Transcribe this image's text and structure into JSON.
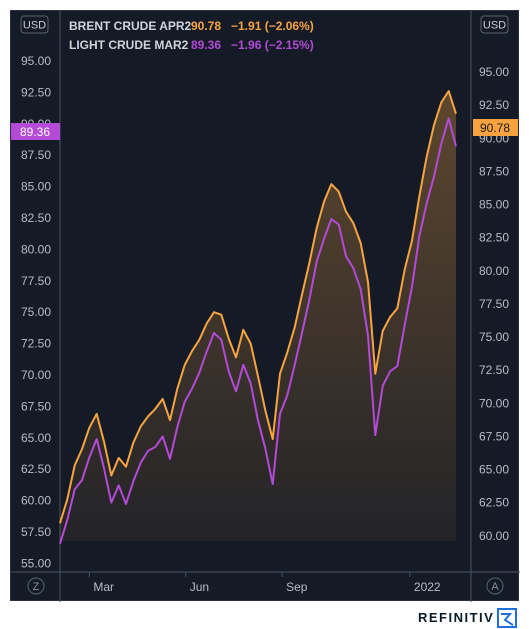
{
  "units": {
    "left": "USD",
    "right": "USD"
  },
  "legend": [
    {
      "name": "BRENT CRUDE APR2",
      "value": "90.78",
      "change": "−1.91 (−2.06%)"
    },
    {
      "name": "LIGHT CRUDE MAR2",
      "value": "89.36",
      "change": "−1.96 (−2.15%)"
    }
  ],
  "price_tags": {
    "light": "89.36",
    "brent": "90.78"
  },
  "controls": {
    "left": "Z",
    "right": "A"
  },
  "brand": "REFINITIV",
  "colors": {
    "brent": "#f7a440",
    "light": "#b44ad8",
    "background": "#151b26"
  },
  "chart_data": {
    "type": "line",
    "x_ticks": [
      "Mar",
      "Jun",
      "Sep",
      "2022"
    ],
    "left_axis": {
      "ticks": [
        "95.00",
        "92.50",
        "90.00",
        "87.50",
        "85.00",
        "82.50",
        "80.00",
        "77.50",
        "75.00",
        "72.50",
        "70.00",
        "67.50",
        "65.00",
        "62.50",
        "60.00",
        "57.50",
        "55.00"
      ],
      "range": [
        55,
        95
      ]
    },
    "right_axis": {
      "ticks": [
        "95.00",
        "92.50",
        "90.00",
        "87.50",
        "85.00",
        "82.50",
        "80.00",
        "77.50",
        "75.00",
        "72.50",
        "70.00",
        "67.50",
        "65.00",
        "62.50",
        "60.00"
      ],
      "range": [
        58,
        96
      ]
    },
    "x": [
      "2021-02-01",
      "2021-02-08",
      "2021-02-15",
      "2021-02-22",
      "2021-03-01",
      "2021-03-08",
      "2021-03-15",
      "2021-03-22",
      "2021-03-29",
      "2021-04-05",
      "2021-04-12",
      "2021-04-19",
      "2021-04-26",
      "2021-05-03",
      "2021-05-10",
      "2021-05-17",
      "2021-05-24",
      "2021-05-31",
      "2021-06-07",
      "2021-06-14",
      "2021-06-21",
      "2021-06-28",
      "2021-07-05",
      "2021-07-12",
      "2021-07-19",
      "2021-07-26",
      "2021-08-02",
      "2021-08-09",
      "2021-08-16",
      "2021-08-23",
      "2021-08-30",
      "2021-09-06",
      "2021-09-13",
      "2021-09-20",
      "2021-09-27",
      "2021-10-04",
      "2021-10-11",
      "2021-10-18",
      "2021-10-25",
      "2021-11-01",
      "2021-11-08",
      "2021-11-15",
      "2021-11-22",
      "2021-11-29",
      "2021-12-06",
      "2021-12-13",
      "2021-12-20",
      "2021-12-27",
      "2022-01-03",
      "2022-01-10",
      "2022-01-17",
      "2022-01-24",
      "2022-01-31",
      "2022-02-07",
      "2022-02-14"
    ],
    "series": [
      {
        "name": "BRENT CRUDE APR2",
        "axis": "left",
        "color": "#f7a440",
        "values": [
          58.2,
          60.1,
          62.8,
          64.1,
          65.8,
          66.9,
          64.7,
          62.0,
          63.4,
          62.7,
          64.6,
          65.9,
          66.7,
          67.3,
          68.1,
          66.4,
          68.9,
          70.8,
          71.9,
          72.8,
          74.1,
          75.0,
          74.8,
          72.9,
          71.4,
          73.6,
          72.5,
          69.9,
          67.2,
          64.9,
          70.1,
          71.8,
          73.8,
          76.4,
          78.9,
          81.7,
          83.8,
          85.2,
          84.6,
          83.0,
          82.1,
          80.5,
          77.4,
          70.1,
          73.5,
          74.6,
          75.3,
          78.4,
          80.7,
          84.2,
          87.4,
          89.9,
          91.7,
          92.6,
          90.8
        ]
      },
      {
        "name": "LIGHT CRUDE MAR2",
        "axis": "right",
        "color": "#b44ad8",
        "values": [
          59.4,
          61.2,
          63.5,
          64.2,
          65.9,
          67.3,
          65.1,
          62.5,
          63.8,
          62.4,
          64.1,
          65.5,
          66.4,
          66.7,
          67.5,
          65.8,
          68.2,
          70.1,
          71.1,
          72.3,
          73.9,
          75.3,
          74.8,
          72.4,
          70.9,
          72.9,
          71.5,
          68.7,
          66.6,
          63.9,
          69.2,
          70.6,
          72.9,
          75.3,
          77.8,
          80.7,
          82.4,
          83.9,
          83.5,
          81.1,
          80.2,
          78.6,
          75.1,
          67.6,
          71.3,
          72.4,
          72.8,
          75.9,
          78.8,
          82.6,
          85.1,
          87.1,
          89.6,
          91.5,
          89.4
        ]
      }
    ]
  }
}
